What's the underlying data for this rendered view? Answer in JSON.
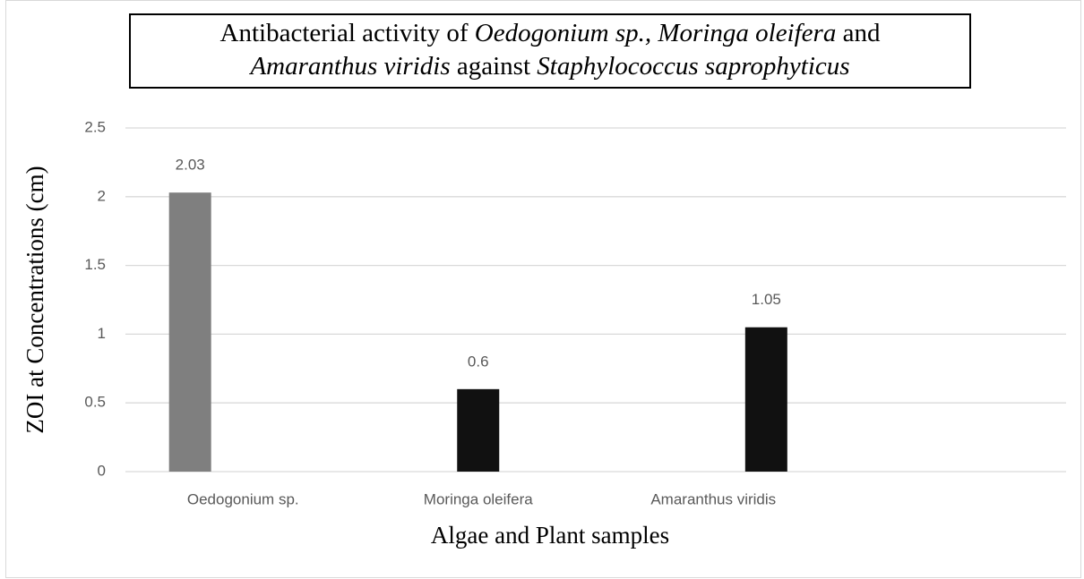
{
  "chart_data": {
    "type": "bar",
    "title": [
      [
        {
          "text": "Antibacterial ",
          "style": "normal"
        },
        {
          "text": "activity of ",
          "style": "normal"
        },
        {
          "text": "Oedogonium sp., Moringa oleifera",
          "style": "italic"
        },
        {
          "text": " and",
          "style": "normal"
        }
      ],
      [
        {
          "text": "Amaranthus viridis",
          "style": "italic"
        },
        {
          "text": " against ",
          "style": "normal"
        },
        {
          "text": "Staphylococcus saprophyticus",
          "style": "italic"
        }
      ]
    ],
    "x_label": "Algae and Plant samples",
    "y_label": "ZOI at Concentrations (cm)",
    "categories": [
      "Oedogonium sp.",
      "Moringa oleifera",
      "Amaranthus viridis",
      null
    ],
    "series": [
      {
        "color": "#7f7f7f",
        "values": [
          2.03,
          null,
          null,
          null
        ]
      },
      {
        "color": "#111111",
        "values": [
          null,
          0.6,
          null,
          null
        ]
      },
      {
        "color": "#111111",
        "values": [
          null,
          null,
          1.05,
          null
        ]
      }
    ],
    "ylim": [
      0,
      2.5
    ],
    "yticks": [
      0,
      0.5,
      1,
      1.5,
      2,
      2.5
    ],
    "grid": true
  }
}
